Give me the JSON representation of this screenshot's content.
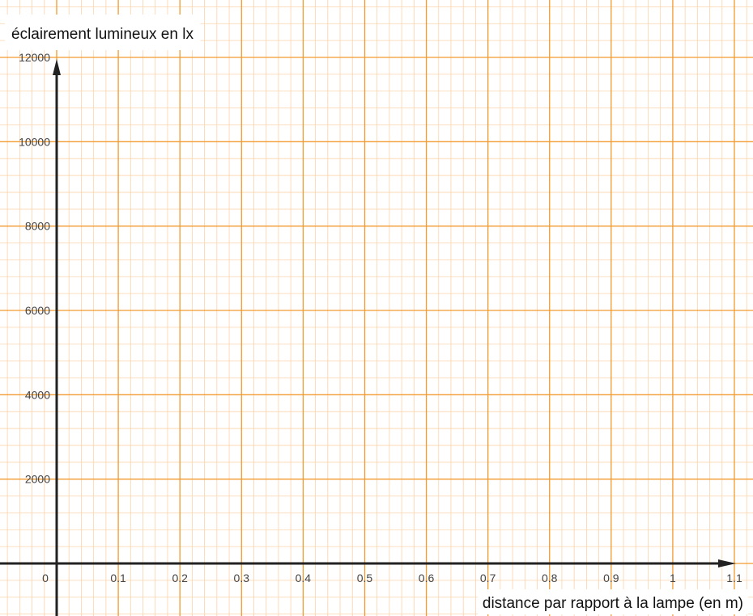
{
  "chart_data": {
    "type": "scatter",
    "title": "",
    "ylabel": "éclairement lumineux en lx",
    "xlabel": "distance par rapport à la lampe (en m)",
    "xlim": [
      0,
      1.1
    ],
    "ylim": [
      0,
      12000
    ],
    "x_major_step": 0.1,
    "y_major_step": 2000,
    "x_minor_per_major": 5,
    "y_minor_per_major": 5,
    "x_ticks": [
      "0",
      "0.1",
      "0.2",
      "0.3",
      "0.4",
      "0.5",
      "0.6",
      "0.7",
      "0.8",
      "0.9",
      "1",
      "1.1"
    ],
    "y_ticks": [
      "2000",
      "4000",
      "6000",
      "8000",
      "10000",
      "12000"
    ],
    "series": [],
    "grid": true,
    "colors": {
      "major_grid": "#f29a2e",
      "minor_grid": "#fbd3aa",
      "axis": "#222222"
    }
  }
}
